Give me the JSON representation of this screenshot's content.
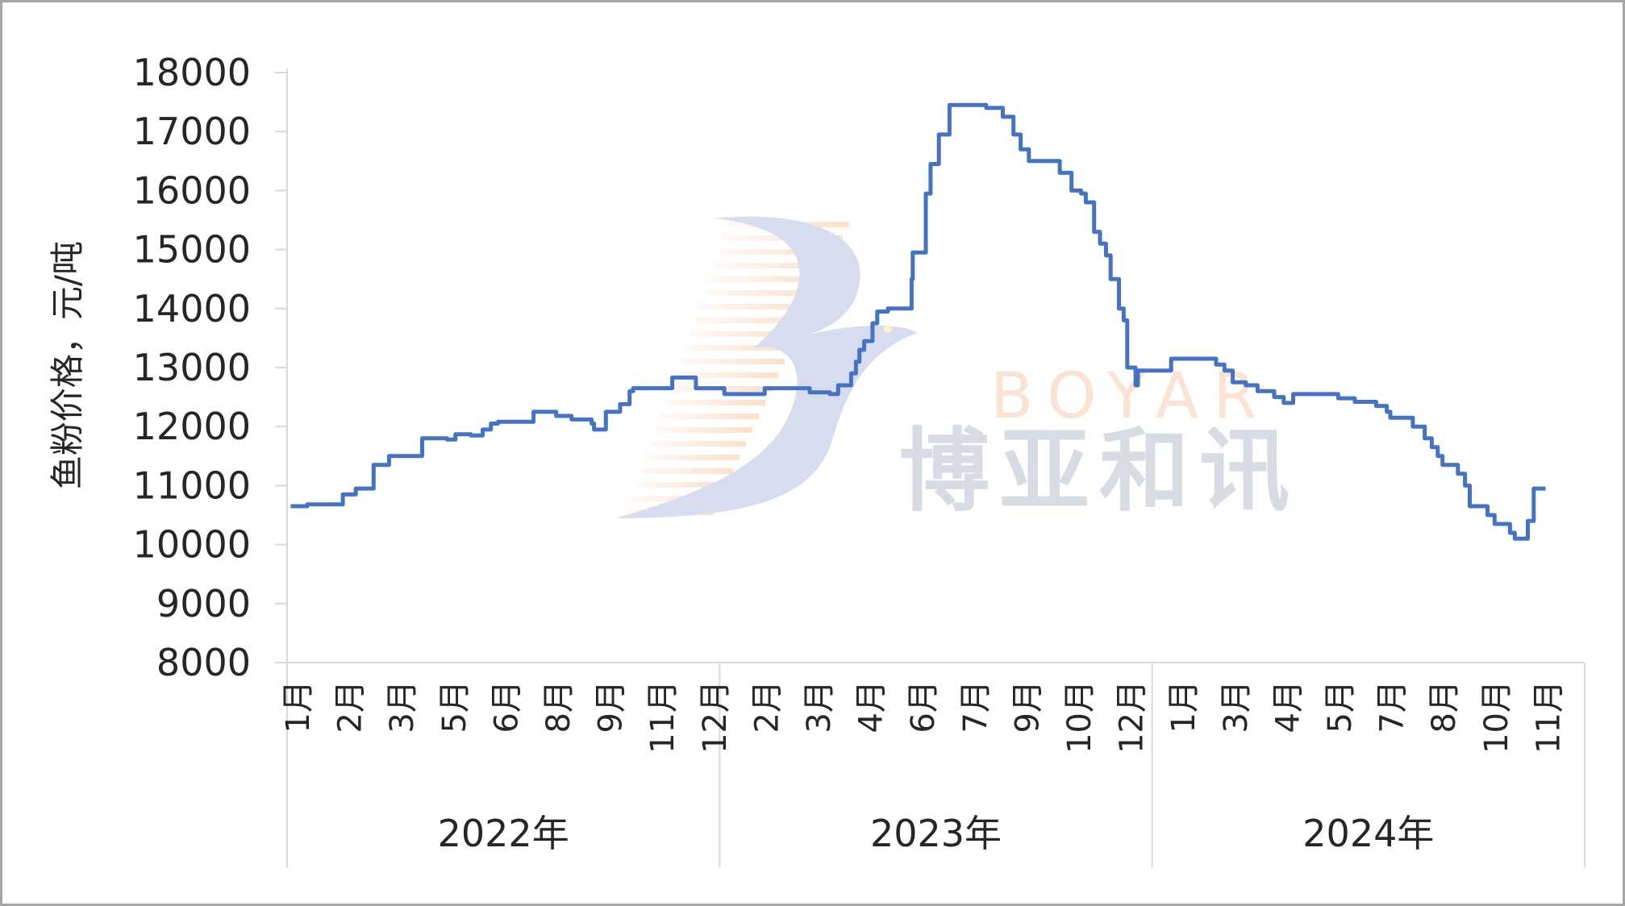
{
  "chart_data": {
    "type": "line",
    "title": "",
    "ylabel": "鱼粉价格，元/吨",
    "xlabel": "",
    "ylim": [
      8000,
      18000
    ],
    "yticks": [
      8000,
      9000,
      10000,
      11000,
      12000,
      13000,
      14000,
      15000,
      16000,
      17000,
      18000
    ],
    "grid": false,
    "line_style": "step",
    "color": "#4472c4",
    "x_groups": [
      {
        "year": "2022年",
        "months": [
          "1月",
          "2月",
          "3月",
          "5月",
          "6月",
          "8月",
          "9月",
          "11月",
          "12月"
        ]
      },
      {
        "year": "2023年",
        "months": [
          "2月",
          "3月",
          "4月",
          "6月",
          "7月",
          "9月",
          "10月",
          "12月"
        ]
      },
      {
        "year": "2024年",
        "months": [
          "1月",
          "3月",
          "4月",
          "5月",
          "7月",
          "8月",
          "10月",
          "11月"
        ]
      }
    ],
    "series": [
      {
        "points": [
          [
            "2022-01-04",
            10650
          ],
          [
            "2022-01-18",
            10680
          ],
          [
            "2022-02-17",
            10850
          ],
          [
            "2022-02-28",
            10950
          ],
          [
            "2022-03-15",
            11350
          ],
          [
            "2022-03-28",
            11500
          ],
          [
            "2022-04-25",
            11800
          ],
          [
            "2022-05-16",
            11780
          ],
          [
            "2022-05-23",
            11870
          ],
          [
            "2022-06-05",
            11850
          ],
          [
            "2022-06-15",
            11950
          ],
          [
            "2022-06-22",
            12050
          ],
          [
            "2022-06-28",
            12080
          ],
          [
            "2022-07-28",
            12250
          ],
          [
            "2022-08-16",
            12180
          ],
          [
            "2022-08-29",
            12120
          ],
          [
            "2022-09-15",
            12050
          ],
          [
            "2022-09-17",
            11950
          ],
          [
            "2022-09-27",
            12250
          ],
          [
            "2022-10-09",
            12380
          ],
          [
            "2022-10-17",
            12600
          ],
          [
            "2022-10-20",
            12650
          ],
          [
            "2022-11-22",
            12830
          ],
          [
            "2022-12-12",
            12650
          ],
          [
            "2023-01-05",
            12550
          ],
          [
            "2023-02-08",
            12650
          ],
          [
            "2023-03-18",
            12580
          ],
          [
            "2023-04-04",
            12550
          ],
          [
            "2023-04-11",
            12700
          ],
          [
            "2023-04-22",
            12900
          ],
          [
            "2023-04-26",
            13100
          ],
          [
            "2023-04-29",
            13300
          ],
          [
            "2023-05-03",
            13450
          ],
          [
            "2023-05-10",
            13750
          ],
          [
            "2023-05-14",
            13950
          ],
          [
            "2023-05-23",
            14000
          ],
          [
            "2023-06-12",
            14500
          ],
          [
            "2023-06-13",
            14950
          ],
          [
            "2023-06-24",
            15950
          ],
          [
            "2023-06-28",
            16450
          ],
          [
            "2023-07-05",
            16950
          ],
          [
            "2023-07-14",
            17450
          ],
          [
            "2023-08-14",
            17400
          ],
          [
            "2023-08-28",
            17250
          ],
          [
            "2023-09-06",
            16950
          ],
          [
            "2023-09-12",
            16700
          ],
          [
            "2023-09-19",
            16500
          ],
          [
            "2023-10-15",
            16300
          ],
          [
            "2023-10-25",
            16000
          ],
          [
            "2023-11-02",
            15950
          ],
          [
            "2023-11-06",
            15800
          ],
          [
            "2023-11-13",
            15300
          ],
          [
            "2023-11-18",
            15100
          ],
          [
            "2023-11-23",
            14900
          ],
          [
            "2023-11-27",
            14500
          ],
          [
            "2023-12-04",
            14000
          ],
          [
            "2023-12-08",
            13800
          ],
          [
            "2023-12-11",
            13000
          ],
          [
            "2023-12-18",
            12700
          ],
          [
            "2023-12-20",
            12950
          ],
          [
            "2024-01-17",
            13150
          ],
          [
            "2024-02-24",
            13050
          ],
          [
            "2024-03-02",
            12950
          ],
          [
            "2024-03-09",
            12750
          ],
          [
            "2024-03-20",
            12700
          ],
          [
            "2024-03-30",
            12600
          ],
          [
            "2024-04-13",
            12500
          ],
          [
            "2024-04-21",
            12400
          ],
          [
            "2024-04-29",
            12550
          ],
          [
            "2024-06-06",
            12480
          ],
          [
            "2024-06-20",
            12420
          ],
          [
            "2024-07-08",
            12350
          ],
          [
            "2024-07-17",
            12250
          ],
          [
            "2024-07-20",
            12150
          ],
          [
            "2024-08-08",
            12000
          ],
          [
            "2024-08-18",
            11800
          ],
          [
            "2024-08-24",
            11650
          ],
          [
            "2024-08-29",
            11500
          ],
          [
            "2024-09-02",
            11350
          ],
          [
            "2024-09-15",
            11200
          ],
          [
            "2024-09-21",
            11000
          ],
          [
            "2024-09-25",
            10650
          ],
          [
            "2024-10-10",
            10500
          ],
          [
            "2024-10-16",
            10350
          ],
          [
            "2024-10-29",
            10200
          ],
          [
            "2024-11-02",
            10100
          ],
          [
            "2024-11-13",
            10400
          ],
          [
            "2024-11-18",
            10950
          ],
          [
            "2024-11-28",
            10950
          ]
        ]
      }
    ]
  },
  "watermark": {
    "latin": "BOYAR",
    "chinese": "博亚和讯"
  }
}
